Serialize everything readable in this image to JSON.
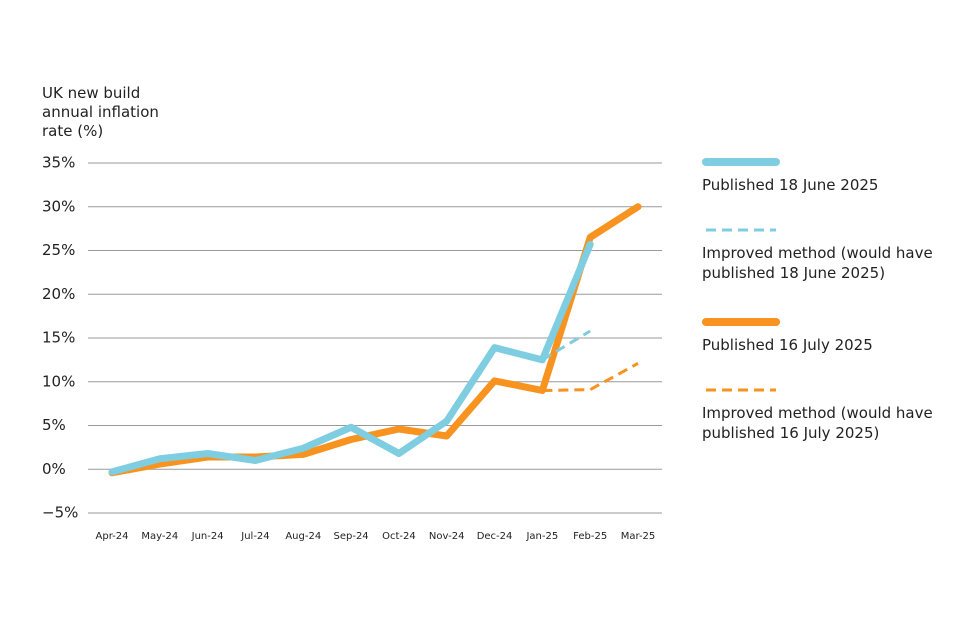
{
  "chart_data": {
    "type": "line",
    "y_label": "UK new build annual inflation rate (%)",
    "categories": [
      "Apr-24",
      "May-24",
      "Jun-24",
      "Jul-24",
      "Aug-24",
      "Sep-24",
      "Oct-24",
      "Nov-24",
      "Dec-24",
      "Jan-25",
      "Feb-25",
      "Mar-25"
    ],
    "ylim": [
      -5,
      35
    ],
    "yticks": [
      {
        "value": -5,
        "label": "−5%"
      },
      {
        "value": 0,
        "label": "0%"
      },
      {
        "value": 5,
        "label": "5%"
      },
      {
        "value": 10,
        "label": "10%"
      },
      {
        "value": 15,
        "label": "15%"
      },
      {
        "value": 20,
        "label": "20%"
      },
      {
        "value": 25,
        "label": "25%"
      },
      {
        "value": 30,
        "label": "30%"
      },
      {
        "value": 35,
        "label": "35%"
      }
    ],
    "grid": true,
    "legend": "right",
    "series": [
      {
        "name": "Published 18 June 2025",
        "color": "#7fcde0",
        "dashed": false,
        "values": [
          -0.3,
          1.2,
          1.8,
          1.0,
          2.4,
          4.8,
          1.8,
          5.5,
          13.9,
          12.5,
          25.7,
          null
        ]
      },
      {
        "name": "Improved method (would have published 18 June 2025)",
        "color": "#7fcde0",
        "dashed": true,
        "values": [
          null,
          null,
          null,
          null,
          null,
          null,
          null,
          null,
          null,
          12.5,
          15.8,
          null
        ]
      },
      {
        "name": "Published 16 July 2025",
        "color": "#f7931e",
        "dashed": false,
        "values": [
          -0.4,
          0.6,
          1.4,
          1.4,
          1.7,
          3.4,
          4.6,
          3.8,
          10.1,
          9.0,
          26.5,
          30.0
        ]
      },
      {
        "name": "Improved method (would have published 16 July 2025)",
        "color": "#f7931e",
        "dashed": true,
        "values": [
          null,
          null,
          null,
          null,
          null,
          null,
          null,
          null,
          null,
          9.0,
          9.1,
          12.1
        ]
      }
    ]
  }
}
